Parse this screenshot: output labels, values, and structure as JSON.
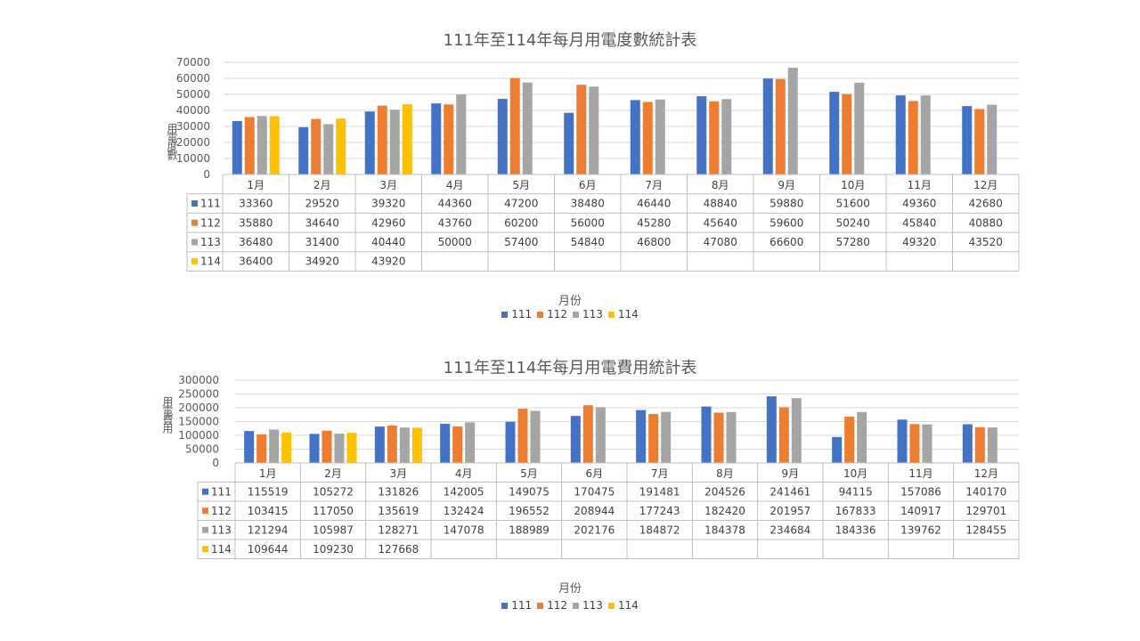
{
  "series_colors": [
    "#4472C4",
    "#ED7D31",
    "#A5A5A5",
    "#FFC000"
  ],
  "chart_data": [
    {
      "type": "bar",
      "title": "111年至114年每月用電度數統計表",
      "xlabel": "月份",
      "ylabel": "用電度數",
      "ylim": [
        0,
        70000
      ],
      "yticks": [
        "0",
        "10000",
        "20000",
        "30000",
        "40000",
        "50000",
        "60000",
        "70000"
      ],
      "grid": true,
      "legend_position": "bottom",
      "categories": [
        "1月",
        "2月",
        "3月",
        "4月",
        "5月",
        "6月",
        "7月",
        "8月",
        "9月",
        "10月",
        "11月",
        "12月"
      ],
      "series": [
        {
          "name": "111",
          "values": [
            33360,
            29520,
            39320,
            44360,
            47200,
            38480,
            46440,
            48840,
            59880,
            51600,
            49360,
            42680
          ]
        },
        {
          "name": "112",
          "values": [
            35880,
            34640,
            42960,
            43760,
            60200,
            56000,
            45280,
            45640,
            59600,
            50240,
            45840,
            40880
          ]
        },
        {
          "name": "113",
          "values": [
            36480,
            31400,
            40440,
            50000,
            57400,
            54840,
            46800,
            47080,
            66600,
            57280,
            49320,
            43520
          ]
        },
        {
          "name": "114",
          "values": [
            36400,
            34920,
            43920,
            null,
            null,
            null,
            null,
            null,
            null,
            null,
            null,
            null
          ]
        }
      ]
    },
    {
      "type": "bar",
      "title": "111年至114年每月用電費用統計表",
      "xlabel": "月份",
      "ylabel": "用電費用",
      "ylim": [
        0,
        300000
      ],
      "yticks": [
        "0",
        "50000",
        "100000",
        "150000",
        "200000",
        "250000",
        "300000"
      ],
      "grid": true,
      "legend_position": "bottom",
      "categories": [
        "1月",
        "2月",
        "3月",
        "4月",
        "5月",
        "6月",
        "7月",
        "8月",
        "9月",
        "10月",
        "11月",
        "12月"
      ],
      "series": [
        {
          "name": "111",
          "values": [
            115519,
            105272,
            131826,
            142005,
            149075,
            170475,
            191481,
            204526,
            241461,
            94115,
            157086,
            140170
          ]
        },
        {
          "name": "112",
          "values": [
            103415,
            117050,
            135619,
            132424,
            196552,
            208944,
            177243,
            182420,
            201957,
            167833,
            140917,
            129701
          ]
        },
        {
          "name": "113",
          "values": [
            121294,
            105987,
            128271,
            147078,
            188989,
            202176,
            184872,
            184378,
            234684,
            184336,
            139762,
            128455
          ]
        },
        {
          "name": "114",
          "values": [
            109644,
            109230,
            127668,
            null,
            null,
            null,
            null,
            null,
            null,
            null,
            null,
            null
          ]
        }
      ]
    }
  ]
}
